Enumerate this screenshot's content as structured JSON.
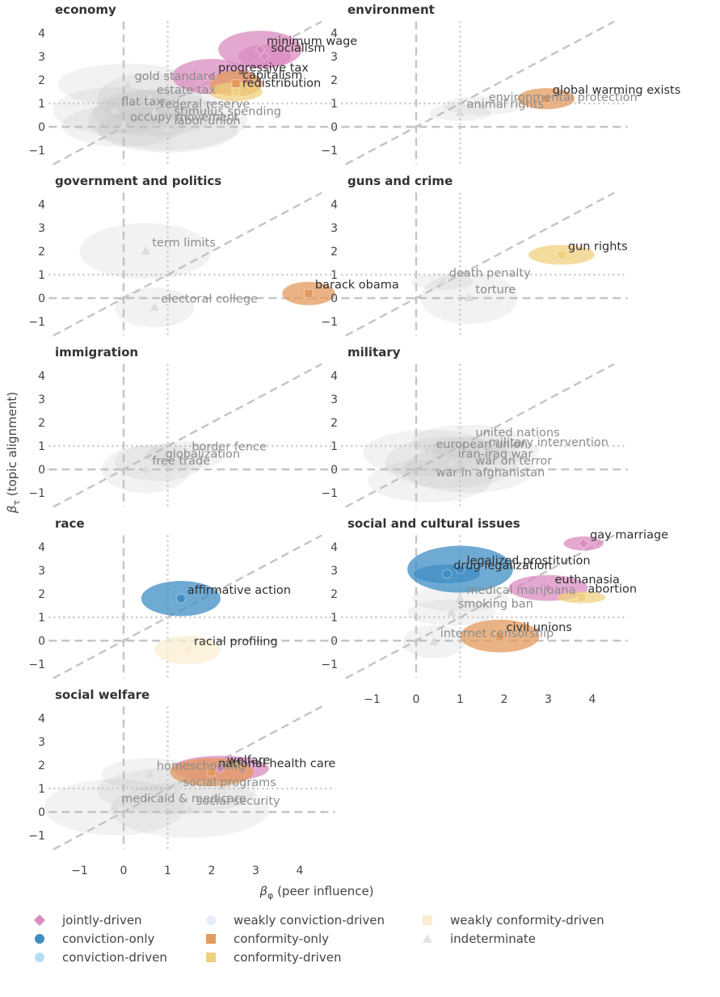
{
  "chart_data": {
    "type": "scatter",
    "x_axis": {
      "label_main": "β",
      "label_sub": "φ",
      "label_rest": "(peer influence)",
      "range": [
        -1.7,
        4.8
      ],
      "ticks": [
        -1,
        0,
        1,
        2,
        3,
        4
      ],
      "tick_labels": [
        "−1",
        "0",
        "1",
        "2",
        "3",
        "4"
      ]
    },
    "y_axis": {
      "label_main": "β",
      "label_sub": "τ",
      "label_rest": "(topic alignment)",
      "range": [
        -1.6,
        4.5
      ],
      "ticks": [
        -1,
        0,
        1,
        2,
        3,
        4
      ],
      "tick_labels": [
        "−1",
        "0",
        "1",
        "2",
        "3",
        "4"
      ]
    },
    "reference_lines": {
      "x_dashed": 0,
      "y_dashed": 0,
      "x_dotted": 1,
      "y_dotted": 1,
      "diagonal": "y = x"
    },
    "categories": {
      "jointly": {
        "label": "jointly-driven",
        "color": "#D98BBF",
        "marker": "diamond"
      },
      "conv_only": {
        "label": "conviction-only",
        "color": "#3F8DC4",
        "marker": "circle"
      },
      "conv_driven": {
        "label": "conviction-driven",
        "color": "#B7DCF2",
        "marker": "circle"
      },
      "weak_conv": {
        "label": "weakly conviction-driven",
        "color": "#E6EEF7",
        "marker": "circle"
      },
      "conf_only": {
        "label": "conformity-only",
        "color": "#E39A5C",
        "marker": "square"
      },
      "conf_driven": {
        "label": "conformity-driven",
        "color": "#F0CF7E",
        "marker": "square"
      },
      "weak_conf": {
        "label": "weakly conformity-driven",
        "color": "#FBEDD3",
        "marker": "square"
      },
      "indet": {
        "label": "indeterminate",
        "color": "#E2E2E2",
        "marker": "triangle"
      }
    },
    "legend": {
      "placement": "bottom",
      "columns": [
        [
          "jointly",
          "conv_only",
          "conv_driven"
        ],
        [
          "weak_conv",
          "conf_only",
          "conf_driven"
        ],
        [
          "weak_conf",
          "indet"
        ]
      ]
    },
    "panels": [
      {
        "title": "economy",
        "points": [
          {
            "label": "minimum wage",
            "cat": "jointly",
            "x": 3.1,
            "y": 3.3,
            "rx": 0.95,
            "ry": 0.8
          },
          {
            "label": "socialism",
            "cat": "jointly",
            "x": 3.2,
            "y": 3.0,
            "rx": 0.6,
            "ry": 0.5
          },
          {
            "label": "progressive tax",
            "cat": "jointly",
            "x": 2.0,
            "y": 2.15,
            "rx": 0.9,
            "ry": 0.75
          },
          {
            "label": "capitalism",
            "cat": "conf_only",
            "x": 2.55,
            "y": 1.85,
            "rx": 0.6,
            "ry": 0.55
          },
          {
            "label": "redistribution",
            "cat": "conf_driven",
            "x": 2.55,
            "y": 1.5,
            "rx": 0.6,
            "ry": 0.4
          },
          {
            "label": "gold standard",
            "cat": "indet",
            "x": 0.1,
            "y": 1.8,
            "rx": 1.6,
            "ry": 0.9
          },
          {
            "label": "estate tax",
            "cat": "indet",
            "x": 0.6,
            "y": 1.2,
            "rx": 1.2,
            "ry": 1.1
          },
          {
            "label": "flat tax",
            "cat": "indet",
            "x": -0.2,
            "y": 0.7,
            "rx": 1.4,
            "ry": 1.0
          },
          {
            "label": "federal reserve",
            "cat": "indet",
            "x": 0.7,
            "y": 0.6,
            "rx": 1.4,
            "ry": 1.0
          },
          {
            "label": "occupy movement",
            "cat": "indet",
            "x": 0.0,
            "y": 0.05,
            "rx": 1.4,
            "ry": 0.9
          },
          {
            "label": "labor union",
            "cat": "indet",
            "x": 1.0,
            "y": -0.1,
            "rx": 1.6,
            "ry": 1.0
          },
          {
            "label": "stimulus spending",
            "cat": "indet",
            "x": 1.0,
            "y": 0.3,
            "rx": 1.8,
            "ry": 1.3
          }
        ]
      },
      {
        "title": "environment",
        "points": [
          {
            "label": "global warming exists",
            "cat": "conf_only",
            "x": 2.95,
            "y": 1.2,
            "rx": 0.65,
            "ry": 0.45
          },
          {
            "label": "environmental protection",
            "cat": "indet",
            "x": 1.5,
            "y": 0.9,
            "rx": 0.9,
            "ry": 0.4
          },
          {
            "label": "animal rights",
            "cat": "indet",
            "x": 1.0,
            "y": 0.6,
            "rx": 0.7,
            "ry": 0.35
          }
        ]
      },
      {
        "title": "government and politics",
        "points": [
          {
            "label": "term limits",
            "cat": "indet",
            "x": 0.5,
            "y": 2.0,
            "rx": 1.5,
            "ry": 1.2
          },
          {
            "label": "barack obama",
            "cat": "conf_only",
            "x": 4.2,
            "y": 0.2,
            "rx": 0.6,
            "ry": 0.5
          },
          {
            "label": "electoral college",
            "cat": "indet",
            "x": 0.7,
            "y": -0.4,
            "rx": 0.9,
            "ry": 0.85
          }
        ]
      },
      {
        "title": "guns and crime",
        "points": [
          {
            "label": "gun rights",
            "cat": "conf_driven",
            "x": 3.3,
            "y": 1.85,
            "rx": 0.75,
            "ry": 0.42
          },
          {
            "label": "death penalty",
            "cat": "indet",
            "x": 0.6,
            "y": 0.7,
            "rx": 0.7,
            "ry": 0.35
          },
          {
            "label": "torture",
            "cat": "indet",
            "x": 1.2,
            "y": 0.0,
            "rx": 1.1,
            "ry": 1.1
          }
        ]
      },
      {
        "title": "immigration",
        "points": [
          {
            "label": "border fence",
            "cat": "indet",
            "x": 1.4,
            "y": 0.6,
            "rx": 0.9,
            "ry": 0.6
          },
          {
            "label": "globalization",
            "cat": "indet",
            "x": 0.8,
            "y": 0.3,
            "rx": 1.0,
            "ry": 0.8
          },
          {
            "label": "free trade",
            "cat": "indet",
            "x": 0.5,
            "y": 0.0,
            "rx": 1.0,
            "ry": 1.0
          }
        ]
      },
      {
        "title": "military",
        "points": [
          {
            "label": "united nations",
            "cat": "indet",
            "x": 1.2,
            "y": 1.2,
            "rx": 1.3,
            "ry": 0.7
          },
          {
            "label": "military intervention",
            "cat": "indet",
            "x": 1.5,
            "y": 0.8,
            "rx": 1.3,
            "ry": 0.6
          },
          {
            "label": "european union",
            "cat": "indet",
            "x": 0.3,
            "y": 0.7,
            "rx": 1.5,
            "ry": 1.0
          },
          {
            "label": "iran-iraq war",
            "cat": "indet",
            "x": 0.8,
            "y": 0.3,
            "rx": 1.5,
            "ry": 1.1
          },
          {
            "label": "war on terror",
            "cat": "indet",
            "x": 1.2,
            "y": 0.0,
            "rx": 1.5,
            "ry": 1.0
          },
          {
            "label": "war in afghanistan",
            "cat": "indet",
            "x": 0.3,
            "y": -0.5,
            "rx": 1.4,
            "ry": 0.9
          }
        ]
      },
      {
        "title": "race",
        "points": [
          {
            "label": "affirmative action",
            "cat": "conv_only",
            "x": 1.3,
            "y": 1.8,
            "rx": 0.9,
            "ry": 0.75
          },
          {
            "label": "racial profiling",
            "cat": "weak_conf",
            "x": 1.45,
            "y": -0.4,
            "rx": 0.75,
            "ry": 0.6
          }
        ]
      },
      {
        "title": "social and cultural issues",
        "points": [
          {
            "label": "gay marriage",
            "cat": "jointly",
            "x": 3.8,
            "y": 4.15,
            "rx": 0.45,
            "ry": 0.3
          },
          {
            "label": "legalized prostitution",
            "cat": "conv_only",
            "x": 1.0,
            "y": 3.05,
            "rx": 1.2,
            "ry": 1.0
          },
          {
            "label": "drug legalization",
            "cat": "conv_only",
            "x": 0.7,
            "y": 2.85,
            "rx": 0.75,
            "ry": 0.4
          },
          {
            "label": "euthanasia",
            "cat": "jointly",
            "x": 3.0,
            "y": 2.25,
            "rx": 0.9,
            "ry": 0.55
          },
          {
            "label": "medical marijuana",
            "cat": "indet",
            "x": 1.0,
            "y": 1.8,
            "rx": 1.1,
            "ry": 0.55
          },
          {
            "label": "abortion",
            "cat": "conf_driven",
            "x": 3.75,
            "y": 1.85,
            "rx": 0.55,
            "ry": 0.25
          },
          {
            "label": "smoking ban",
            "cat": "indet",
            "x": 0.8,
            "y": 1.2,
            "rx": 1.0,
            "ry": 0.55
          },
          {
            "label": "civil unions",
            "cat": "conf_only",
            "x": 1.9,
            "y": 0.2,
            "rx": 0.9,
            "ry": 0.7
          },
          {
            "label": "internet censorship",
            "cat": "indet",
            "x": 0.4,
            "y": -0.05,
            "rx": 0.7,
            "ry": 0.7
          }
        ]
      },
      {
        "title": "social welfare",
        "points": [
          {
            "label": "welfare",
            "cat": "jointly",
            "x": 2.2,
            "y": 1.85,
            "rx": 1.1,
            "ry": 0.55
          },
          {
            "label": "national health care",
            "cat": "conf_only",
            "x": 2.0,
            "y": 1.7,
            "rx": 0.95,
            "ry": 0.6
          },
          {
            "label": "homeschooling",
            "cat": "indet",
            "x": 0.6,
            "y": 1.6,
            "rx": 1.1,
            "ry": 0.7
          },
          {
            "label": "social programs",
            "cat": "indet",
            "x": 1.2,
            "y": 0.9,
            "rx": 1.8,
            "ry": 1.0
          },
          {
            "label": "medicaid & medicare",
            "cat": "indet",
            "x": -0.2,
            "y": 0.2,
            "rx": 1.6,
            "ry": 1.2
          },
          {
            "label": "social security",
            "cat": "indet",
            "x": 1.5,
            "y": 0.1,
            "rx": 1.8,
            "ry": 1.2
          }
        ]
      }
    ]
  }
}
